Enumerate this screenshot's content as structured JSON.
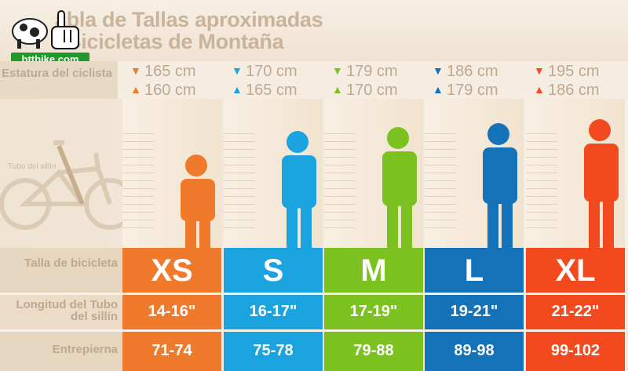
{
  "header": {
    "title_line1": "abla de Tallas aproximadas",
    "title_line2": "Bicicletas de Montaña",
    "logo_text": "bttbike.com"
  },
  "labels": {
    "estatura": "Estatura del ciclista",
    "tubo_diagram": "Tubo del sillín",
    "talla": "Talla de bicicleta",
    "longitud": "Longitud del Tubo del sillín",
    "entrepierna": "Entrepierna"
  },
  "colors": {
    "xs": "#f07a2b",
    "s": "#1ba3e0",
    "m": "#7bc220",
    "l": "#1473b8",
    "xl": "#f24a1e"
  },
  "sizes": [
    {
      "size": "XS",
      "height_max": "165 cm",
      "height_min": "160 cm",
      "tube": "14-16\"",
      "inseam": "71-74",
      "color": "#f07a2b"
    },
    {
      "size": "S",
      "height_max": "170 cm",
      "height_min": "165 cm",
      "tube": "16-17\"",
      "inseam": "75-78",
      "color": "#1ba3e0"
    },
    {
      "size": "M",
      "height_max": "179 cm",
      "height_min": "170 cm",
      "tube": "17-19\"",
      "inseam": "79-88",
      "color": "#7bc220"
    },
    {
      "size": "L",
      "height_max": "186 cm",
      "height_min": "179 cm",
      "tube": "19-21\"",
      "inseam": "89-98",
      "color": "#1473b8"
    },
    {
      "size": "XL",
      "height_max": "195 cm",
      "height_min": "186 cm",
      "tube": "21-22\"",
      "inseam": "99-102",
      "color": "#f24a1e"
    }
  ]
}
